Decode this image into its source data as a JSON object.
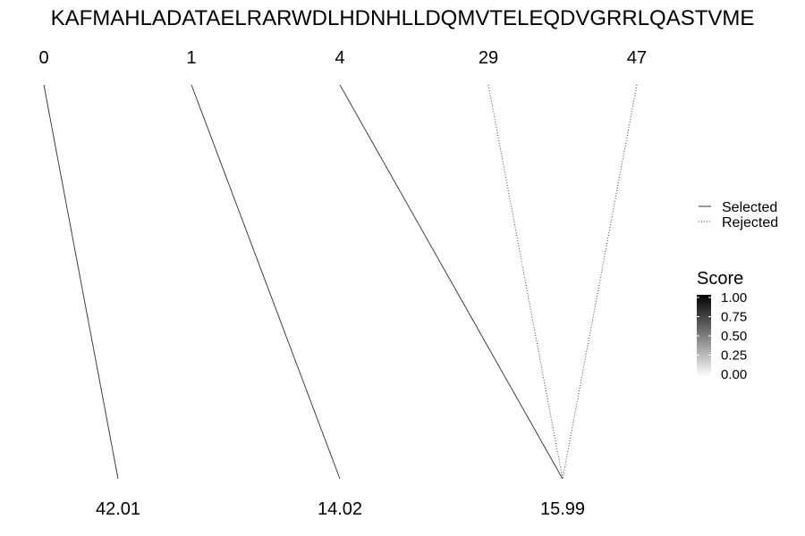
{
  "sequence": "KAFMAHLADATAELRARWDLHDNHLLDQMVTELEQDVGRRLQASTVME",
  "top_labels": [
    "0",
    "1",
    "4",
    "29",
    "47"
  ],
  "bottom_labels": [
    "42.01",
    "14.02",
    "15.99"
  ],
  "links": [
    {
      "from": 0,
      "to": 0,
      "status": "selected",
      "score": 0.75
    },
    {
      "from": 1,
      "to": 1,
      "status": "selected",
      "score": 0.75
    },
    {
      "from": 2,
      "to": 2,
      "status": "selected",
      "score": 0.75
    },
    {
      "from": 3,
      "to": 2,
      "status": "rejected",
      "score": 0.75
    },
    {
      "from": 4,
      "to": 2,
      "status": "rejected",
      "score": 0.75
    }
  ],
  "legend": {
    "selected_label": "Selected",
    "rejected_label": "Rejected"
  },
  "score_scale": {
    "title": "Score",
    "ticks": [
      "1.00",
      "0.75",
      "0.50",
      "0.25",
      "0.00"
    ],
    "low_color": "#ffffff",
    "high_color": "#000000"
  }
}
